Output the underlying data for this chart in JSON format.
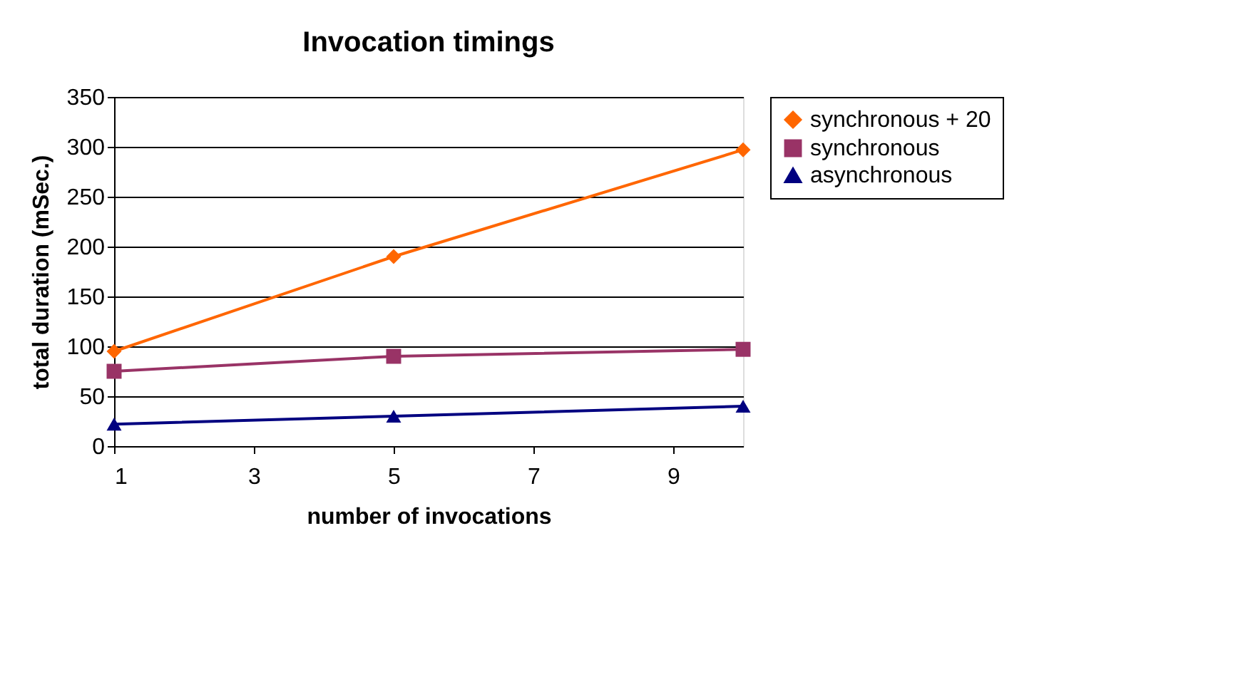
{
  "chart_data": {
    "type": "line",
    "title": "Invocation timings",
    "xlabel": "number of invocations",
    "ylabel": "total duration (mSec.)",
    "x": [
      1,
      5,
      10
    ],
    "xlim": [
      1,
      10
    ],
    "xticks": [
      1,
      3,
      5,
      7,
      9
    ],
    "ylim": [
      0,
      350
    ],
    "yticks": [
      0,
      50,
      100,
      150,
      200,
      250,
      300,
      350
    ],
    "grid": "y",
    "legend": "right",
    "series": [
      {
        "name": "synchronous + 20",
        "color": "#ff6600",
        "marker": "diamond",
        "values": [
          95,
          190,
          297
        ]
      },
      {
        "name": "synchronous",
        "color": "#993366",
        "marker": "square",
        "values": [
          75,
          90,
          97
        ]
      },
      {
        "name": "asynchronous",
        "color": "#000080",
        "marker": "triangle",
        "values": [
          22,
          30,
          40
        ]
      }
    ]
  }
}
